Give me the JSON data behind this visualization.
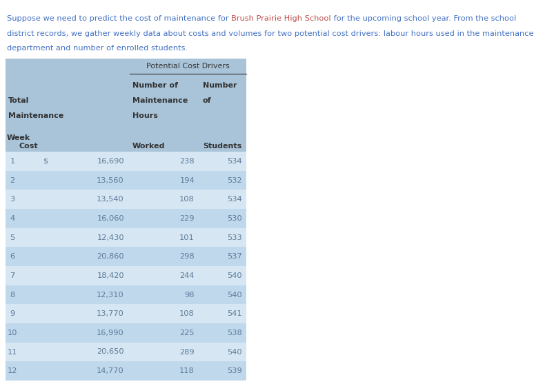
{
  "intro_line1_part1": "Suppose we need to predict the cost of maintenance for ",
  "intro_line1_highlight": "Brush Prairie High School",
  "intro_line1_part2": " for the upcoming school year. From the school",
  "intro_line2": "district records, we gather weekly data about costs and volumes for two potential cost drivers: labour hours used in the maintenance",
  "intro_line3": "department and number of enrolled students.",
  "text_color": "#4472C4",
  "highlight_color": "#C0504D",
  "table_header_bg": "#A9C4D9",
  "table_row_bg_odd": "#D6E6F2",
  "table_row_bg_even": "#C0D8EC",
  "table_text_color": "#5B7B9A",
  "header_text_color": "#333333",
  "weeks": [
    1,
    2,
    3,
    4,
    5,
    6,
    7,
    8,
    9,
    10,
    11,
    12
  ],
  "costs": [
    16690,
    13560,
    13540,
    16060,
    12430,
    20860,
    18420,
    12310,
    13770,
    16990,
    20650,
    14770
  ],
  "hours": [
    238,
    194,
    108,
    229,
    101,
    298,
    244,
    98,
    108,
    225,
    289,
    118
  ],
  "students": [
    534,
    532,
    534,
    530,
    533,
    537,
    540,
    540,
    541,
    538,
    540,
    539
  ],
  "fig_width": 7.74,
  "fig_height": 5.57,
  "fig_dpi": 100
}
